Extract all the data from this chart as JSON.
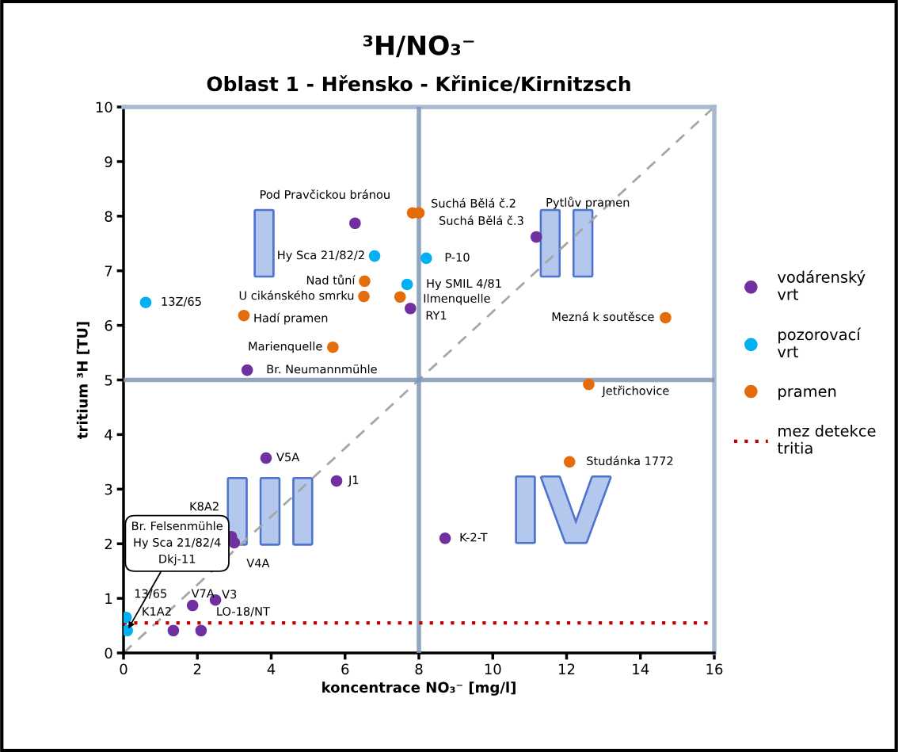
{
  "chart_data": {
    "type": "scatter",
    "title": "³H/NO₃⁻",
    "subtitle": "Oblast 1 - Hřensko - Křinice/Kirnitzsch",
    "xlabel": "koncentrace NO₃⁻ [mg/l]",
    "ylabel": "tritium ³H [TU]",
    "xlim": [
      0,
      16
    ],
    "xticks": [
      0,
      2,
      4,
      6,
      8,
      10,
      12,
      14,
      16
    ],
    "ylim": [
      0,
      10
    ],
    "yticks": [
      0,
      1,
      2,
      3,
      4,
      5,
      6,
      7,
      8,
      9,
      10
    ],
    "grid": false,
    "legend": "right",
    "marker": "circle",
    "series": [
      {
        "name": "vodárenský vrt",
        "color": "#7030a0",
        "x": [
          6.27,
          11.18,
          7.77,
          3.35,
          3.86,
          5.77,
          2.92,
          3.0,
          1.87,
          2.49,
          1.35,
          2.1,
          8.71
        ],
        "values": [
          7.87,
          7.62,
          6.31,
          5.18,
          3.57,
          3.15,
          2.13,
          2.02,
          0.87,
          0.97,
          0.41,
          0.41,
          2.1
        ]
      },
      {
        "name": "pozorovací vrt",
        "color": "#00b0f0",
        "x": [
          0.6,
          6.8,
          8.2,
          7.68,
          0.07,
          0.1
        ],
        "values": [
          6.42,
          7.27,
          7.23,
          6.75,
          0.65,
          0.41
        ]
      },
      {
        "name": "pramen",
        "color": "#e46c0a",
        "x": [
          7.83,
          8.0,
          6.53,
          6.51,
          7.49,
          3.26,
          5.67,
          14.68,
          12.6,
          12.08
        ],
        "values": [
          8.06,
          8.06,
          6.81,
          6.53,
          6.52,
          6.18,
          5.6,
          6.14,
          4.92,
          3.5
        ]
      },
      {
        "type": "line",
        "color": "#a6a6a6",
        "line_style": "dashed",
        "marker": "none",
        "x": [
          0,
          16
        ],
        "values": [
          0,
          10
        ]
      }
    ],
    "ref_lines": [
      {
        "axis": "x",
        "value": 8,
        "color": "#7f96b5",
        "line_style": "solid"
      },
      {
        "axis": "y",
        "value": 5,
        "color": "#7f96b5",
        "line_style": "solid"
      },
      {
        "axis": "y",
        "value": 0.55,
        "label": "mez detekce tritia",
        "color": "#c00000",
        "line_style": "dotted"
      }
    ],
    "annotations": [
      {
        "text": "Pod Pravčickou bránou",
        "x": 6.27,
        "y": 7.87
      },
      {
        "text": "Suchá Bělá č.2",
        "x": 7.83,
        "y": 8.06
      },
      {
        "text": "Suchá Bělá č.3",
        "x": 8.0,
        "y": 8.06
      },
      {
        "text": "Pytlův pramen",
        "x": 11.18,
        "y": 7.62
      },
      {
        "text": "Hy Sca 21/82/2",
        "x": 6.8,
        "y": 7.27
      },
      {
        "text": "P-10",
        "x": 8.2,
        "y": 7.23
      },
      {
        "text": "Nad tůní",
        "x": 6.53,
        "y": 6.81
      },
      {
        "text": "Hy SMIL 4/81",
        "x": 7.68,
        "y": 6.75
      },
      {
        "text": "U cikánského smrku",
        "x": 6.51,
        "y": 6.53
      },
      {
        "text": "Ilmenquelle",
        "x": 7.49,
        "y": 6.52
      },
      {
        "text": "RY1",
        "x": 7.77,
        "y": 6.31
      },
      {
        "text": "13Z/65",
        "x": 0.6,
        "y": 6.42
      },
      {
        "text": "Hadí pramen",
        "x": 3.26,
        "y": 6.18
      },
      {
        "text": "Mezná k soutěsce",
        "x": 14.68,
        "y": 6.14
      },
      {
        "text": "Marienquelle",
        "x": 5.67,
        "y": 5.6
      },
      {
        "text": "Br. Neumannmühle",
        "x": 3.35,
        "y": 5.18
      },
      {
        "text": "Jetřichovice",
        "x": 12.6,
        "y": 4.92
      },
      {
        "text": "V5A",
        "x": 3.86,
        "y": 3.57
      },
      {
        "text": "J1",
        "x": 5.77,
        "y": 3.15
      },
      {
        "text": "Studánka 1772",
        "x": 12.08,
        "y": 3.5
      },
      {
        "text": "K8A2",
        "x": 2.92,
        "y": 2.13
      },
      {
        "text": "V4A",
        "x": 3.0,
        "y": 2.02
      },
      {
        "text": "K-2-T",
        "x": 8.71,
        "y": 2.1
      },
      {
        "text": "13/65",
        "x": 0.07,
        "y": 0.65
      },
      {
        "text": "V7A",
        "x": 1.87,
        "y": 0.87
      },
      {
        "text": "V3",
        "x": 2.49,
        "y": 0.97
      },
      {
        "text": "K1A2",
        "x": 1.35,
        "y": 0.41
      },
      {
        "text": "LO-18/NT",
        "x": 2.1,
        "y": 0.41
      },
      {
        "text": "Br. Felsenmühle\nHy Sca 21/82/4\nDkj-11",
        "x": 0.1,
        "y": 0.41
      },
      "I",
      "II",
      "III",
      "IV"
    ]
  }
}
